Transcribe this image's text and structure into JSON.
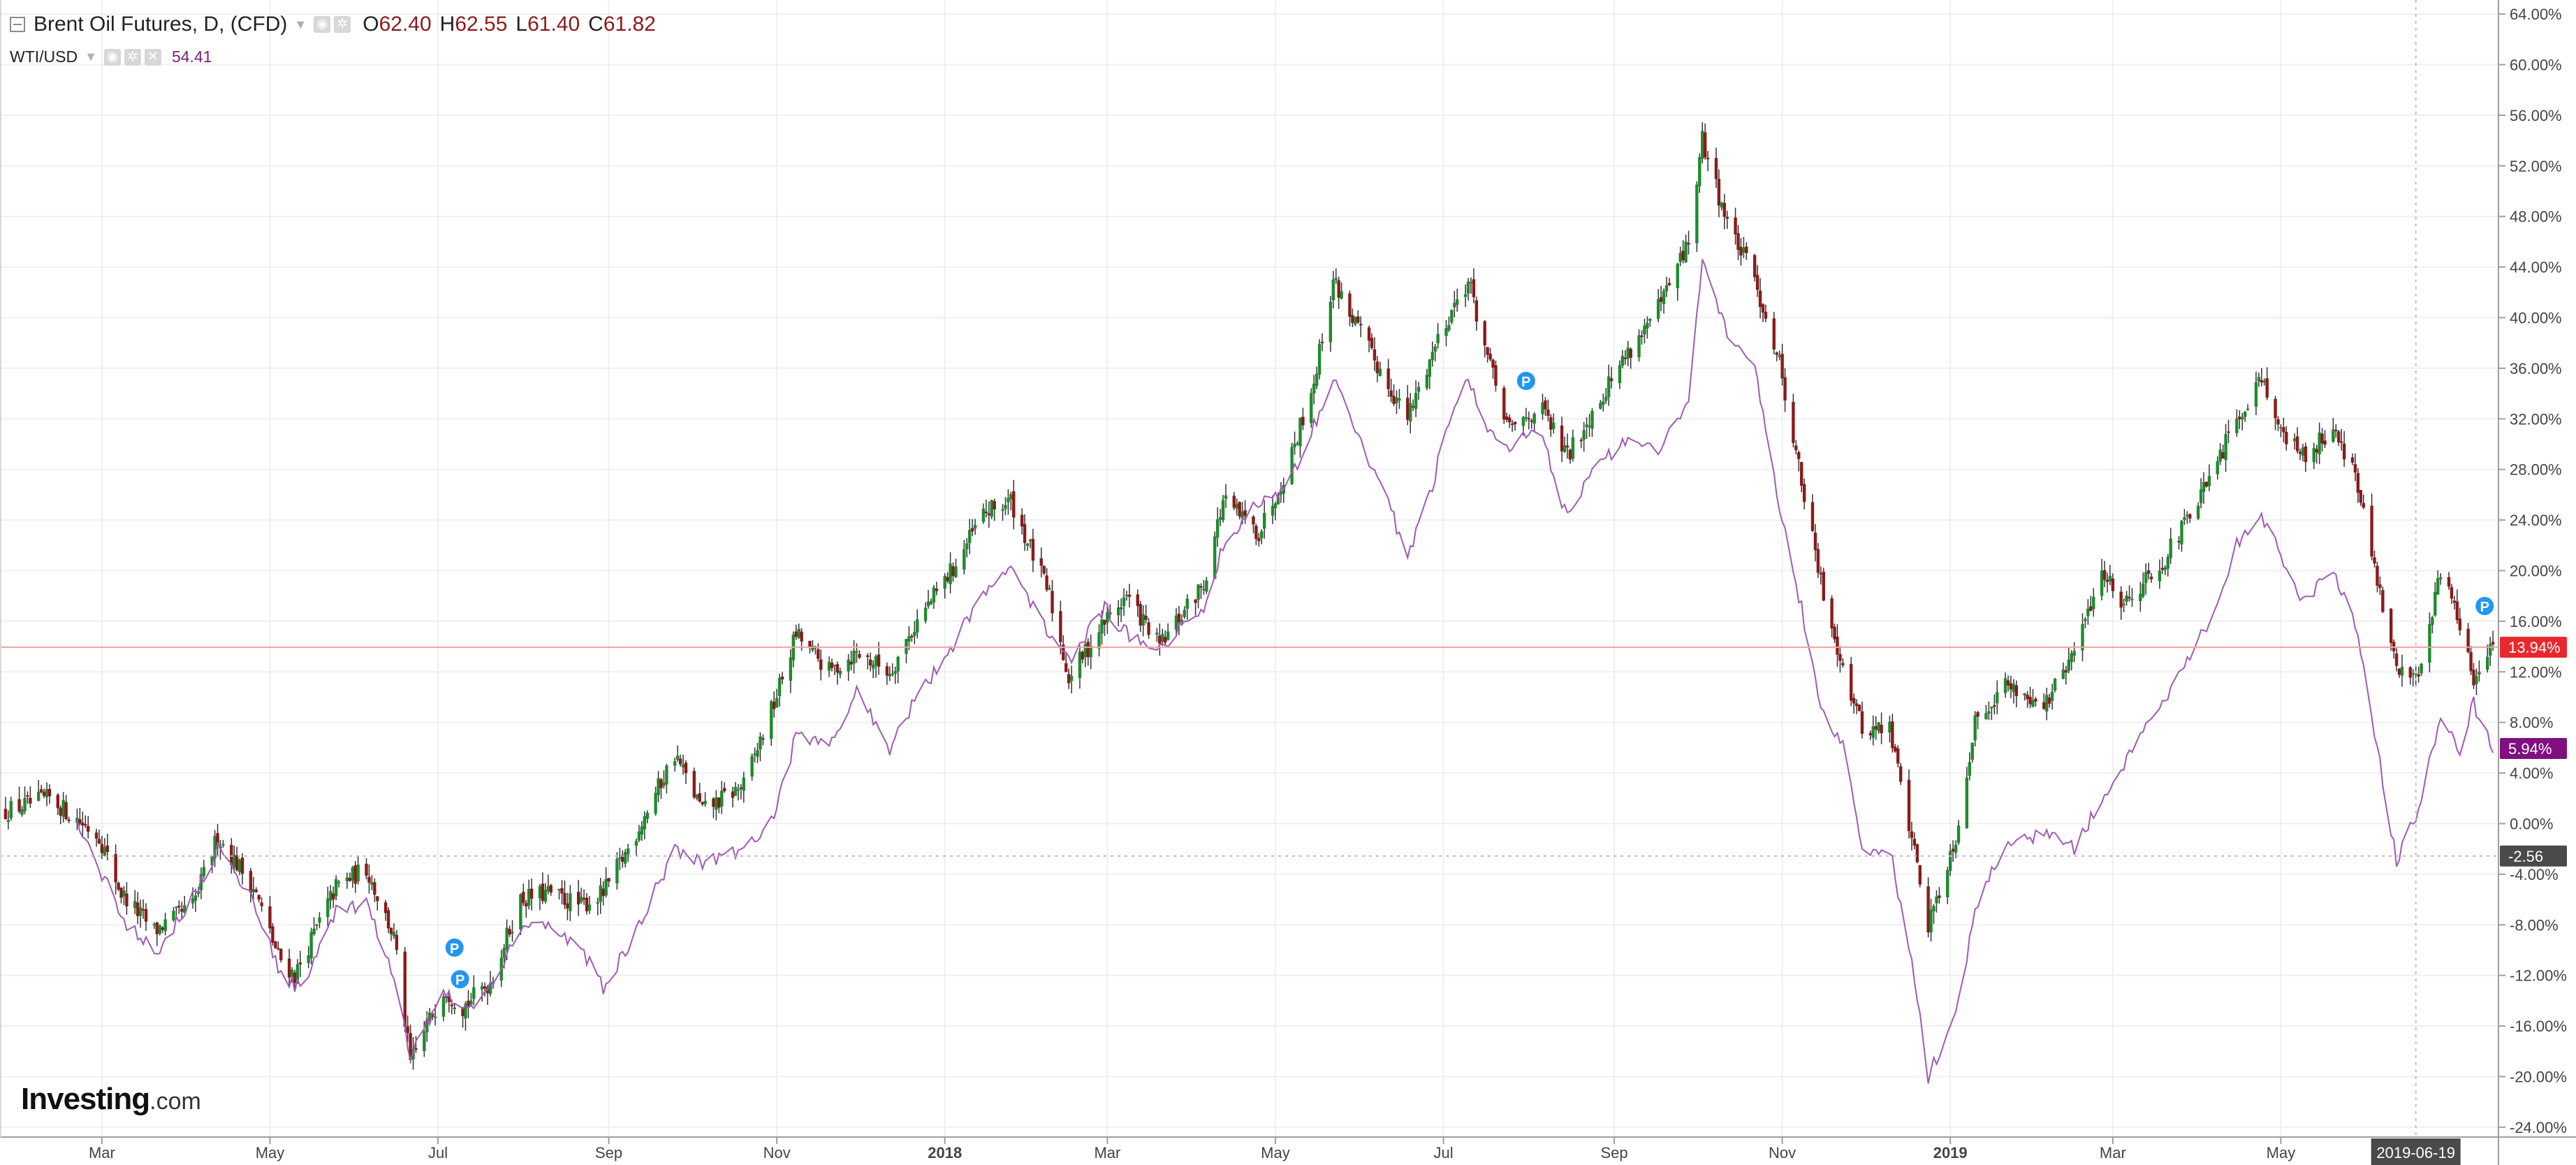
{
  "legend": {
    "main_title": "Brent Oil Futures, D, (CFD)",
    "open_key": "O",
    "open": "62.40",
    "high_key": "H",
    "high": "62.55",
    "low_key": "L",
    "low": "61.40",
    "close_key": "C",
    "close": "61.82",
    "compare_name": "WTI/USD",
    "compare_value": "54.41"
  },
  "branding": {
    "logo_text": "Investing",
    "logo_suffix": ".com"
  },
  "colors": {
    "up": "#1f8a2e",
    "down": "#8b1a1a",
    "compare_line": "#a05ab4",
    "last_badge": "#e8282e",
    "compare_badge": "#800f80",
    "marker": "#2196f3"
  },
  "chart_data": {
    "type": "line",
    "ylim": [
      -25,
      65
    ],
    "y_ticks": [
      "64.00%",
      "60.00%",
      "56.00%",
      "52.00%",
      "48.00%",
      "44.00%",
      "40.00%",
      "36.00%",
      "32.00%",
      "28.00%",
      "24.00%",
      "20.00%",
      "16.00%",
      "12.00%",
      "8.00%",
      "4.00%",
      "0.00%",
      "-4.00%",
      "-8.00%",
      "-12.00%",
      "-16.00%",
      "-20.00%",
      "-24.00%"
    ],
    "y_tick_values": [
      64,
      60,
      56,
      52,
      48,
      44,
      40,
      36,
      32,
      28,
      24,
      20,
      16,
      12,
      8,
      4,
      0,
      -4,
      -8,
      -12,
      -16,
      -20,
      -24
    ],
    "x_labels": [
      "Mar",
      "May",
      "Jul",
      "Sep",
      "Nov",
      "2018",
      "Mar",
      "May",
      "Jul",
      "Sep",
      "Nov",
      "2019",
      "Mar",
      "May"
    ],
    "x_label_dates": [
      "2017-03-01",
      "2017-05-01",
      "2017-07-01",
      "2017-09-01",
      "2017-11-01",
      "2018-01-01",
      "2018-03-01",
      "2018-05-01",
      "2018-07-01",
      "2018-09-01",
      "2018-11-01",
      "2019-01-01",
      "2019-03-01",
      "2019-05-01"
    ],
    "x_range": [
      "2017-01-23",
      "2019-07-19"
    ],
    "crosshair_date_label": "2019-06-19",
    "crosshair_value_label": "-2.56",
    "crosshair_value": -2.56,
    "price_line_value": 13.94,
    "price_line_label": "13.94%",
    "compare_last_value": 5.94,
    "compare_last_label": "5.94%",
    "grid": true,
    "series": [
      {
        "type": "candlestick",
        "points": [
          [
            "2017-01-25",
            1.0
          ],
          [
            "2017-02-10",
            2.0
          ],
          [
            "2017-02-28",
            -1.0
          ],
          [
            "2017-03-08",
            -5.5
          ],
          [
            "2017-03-20",
            -8.5
          ],
          [
            "2017-04-03",
            -6.5
          ],
          [
            "2017-04-12",
            -1.0
          ],
          [
            "2017-04-25",
            -5.0
          ],
          [
            "2017-05-04",
            -10.5
          ],
          [
            "2017-05-10",
            -12.0
          ],
          [
            "2017-05-25",
            -5.0
          ],
          [
            "2017-06-05",
            -3.5
          ],
          [
            "2017-06-15",
            -9.0
          ],
          [
            "2017-06-21",
            -19.0
          ],
          [
            "2017-07-03",
            -13.0
          ],
          [
            "2017-07-10",
            -14.5
          ],
          [
            "2017-07-20",
            -12.5
          ],
          [
            "2017-07-31",
            -6.0
          ],
          [
            "2017-08-10",
            -5.5
          ],
          [
            "2017-08-22",
            -6.5
          ],
          [
            "2017-08-30",
            -5.5
          ],
          [
            "2017-09-08",
            -2.0
          ],
          [
            "2017-09-25",
            5.5
          ],
          [
            "2017-10-05",
            1.0
          ],
          [
            "2017-10-20",
            3.0
          ],
          [
            "2017-10-31",
            9.5
          ],
          [
            "2017-11-08",
            15.0
          ],
          [
            "2017-11-20",
            12.0
          ],
          [
            "2017-11-30",
            13.5
          ],
          [
            "2017-12-12",
            12.0
          ],
          [
            "2017-12-22",
            16.0
          ],
          [
            "2018-01-05",
            20.5
          ],
          [
            "2018-01-15",
            24.5
          ],
          [
            "2018-01-25",
            25.5
          ],
          [
            "2018-02-08",
            18.0
          ],
          [
            "2018-02-15",
            11.5
          ],
          [
            "2018-02-28",
            16.0
          ],
          [
            "2018-03-08",
            18.0
          ],
          [
            "2018-03-20",
            14.0
          ],
          [
            "2018-04-05",
            19.0
          ],
          [
            "2018-04-12",
            25.5
          ],
          [
            "2018-04-25",
            23.0
          ],
          [
            "2018-05-05",
            28.0
          ],
          [
            "2018-05-15",
            35.0
          ],
          [
            "2018-05-22",
            43.0
          ],
          [
            "2018-06-05",
            37.0
          ],
          [
            "2018-06-18",
            32.0
          ],
          [
            "2018-06-30",
            39.0
          ],
          [
            "2018-07-10",
            43.0
          ],
          [
            "2018-07-18",
            36.0
          ],
          [
            "2018-07-25",
            31.0
          ],
          [
            "2018-08-05",
            33.0
          ],
          [
            "2018-08-15",
            29.0
          ],
          [
            "2018-08-25",
            33.0
          ],
          [
            "2018-09-05",
            37.0
          ],
          [
            "2018-09-18",
            41.0
          ],
          [
            "2018-09-28",
            46.0
          ],
          [
            "2018-10-03",
            54.0
          ],
          [
            "2018-10-12",
            47.5
          ],
          [
            "2018-10-22",
            43.0
          ],
          [
            "2018-10-31",
            36.5
          ],
          [
            "2018-11-08",
            27.0
          ],
          [
            "2018-11-15",
            19.0
          ],
          [
            "2018-11-23",
            12.5
          ],
          [
            "2018-11-30",
            7.5
          ],
          [
            "2018-12-10",
            7.5
          ],
          [
            "2018-12-18",
            -1.0
          ],
          [
            "2018-12-24",
            -8.0
          ],
          [
            "2019-01-03",
            -1.0
          ],
          [
            "2019-01-10",
            8.0
          ],
          [
            "2019-01-20",
            11.0
          ],
          [
            "2019-02-05",
            9.5
          ],
          [
            "2019-02-15",
            13.5
          ],
          [
            "2019-02-25",
            20.0
          ],
          [
            "2019-03-05",
            17.5
          ],
          [
            "2019-03-20",
            21.0
          ],
          [
            "2019-04-05",
            27.0
          ],
          [
            "2019-04-15",
            32.0
          ],
          [
            "2019-04-24",
            35.5
          ],
          [
            "2019-05-02",
            30.5
          ],
          [
            "2019-05-10",
            29.0
          ],
          [
            "2019-05-20",
            31.5
          ],
          [
            "2019-05-28",
            27.5
          ],
          [
            "2019-06-05",
            19.0
          ],
          [
            "2019-06-12",
            12.0
          ],
          [
            "2019-06-20",
            12.0
          ],
          [
            "2019-06-28",
            20.0
          ],
          [
            "2019-07-05",
            16.0
          ],
          [
            "2019-07-10",
            11.0
          ],
          [
            "2019-07-17",
            13.94
          ]
        ]
      },
      {
        "type": "line",
        "points": [
          [
            "2017-02-20",
            0.0
          ],
          [
            "2017-03-10",
            -8.0
          ],
          [
            "2017-03-22",
            -10.0
          ],
          [
            "2017-04-05",
            -5.0
          ],
          [
            "2017-04-12",
            -2.0
          ],
          [
            "2017-04-25",
            -6.0
          ],
          [
            "2017-05-05",
            -12.0
          ],
          [
            "2017-05-12",
            -13.0
          ],
          [
            "2017-05-25",
            -7.0
          ],
          [
            "2017-06-05",
            -6.5
          ],
          [
            "2017-06-15",
            -12.0
          ],
          [
            "2017-06-21",
            -18.5
          ],
          [
            "2017-07-03",
            -13.0
          ],
          [
            "2017-07-10",
            -15.0
          ],
          [
            "2017-07-20",
            -13.0
          ],
          [
            "2017-07-31",
            -8.0
          ],
          [
            "2017-08-10",
            -8.0
          ],
          [
            "2017-08-22",
            -10.0
          ],
          [
            "2017-08-30",
            -13.0
          ],
          [
            "2017-09-10",
            -9.0
          ],
          [
            "2017-09-25",
            -2.0
          ],
          [
            "2017-10-05",
            -3.0
          ],
          [
            "2017-10-20",
            -2.0
          ],
          [
            "2017-10-31",
            0.5
          ],
          [
            "2017-11-08",
            7.0
          ],
          [
            "2017-11-20",
            6.0
          ],
          [
            "2017-11-30",
            10.5
          ],
          [
            "2017-12-12",
            6.0
          ],
          [
            "2017-12-22",
            10.0
          ],
          [
            "2018-01-05",
            14.5
          ],
          [
            "2018-01-15",
            18.5
          ],
          [
            "2018-01-25",
            20.0
          ],
          [
            "2018-02-08",
            15.0
          ],
          [
            "2018-02-15",
            13.0
          ],
          [
            "2018-02-28",
            17.0
          ],
          [
            "2018-03-08",
            15.0
          ],
          [
            "2018-03-20",
            14.0
          ],
          [
            "2018-04-05",
            17.0
          ],
          [
            "2018-04-12",
            22.0
          ],
          [
            "2018-04-25",
            25.5
          ],
          [
            "2018-05-05",
            26.5
          ],
          [
            "2018-05-15",
            31.5
          ],
          [
            "2018-05-22",
            35.5
          ],
          [
            "2018-06-01",
            30.0
          ],
          [
            "2018-06-10",
            26.0
          ],
          [
            "2018-06-18",
            21.0
          ],
          [
            "2018-06-26",
            26.0
          ],
          [
            "2018-07-05",
            33.5
          ],
          [
            "2018-07-10",
            35.0
          ],
          [
            "2018-07-18",
            31.0
          ],
          [
            "2018-07-25",
            30.0
          ],
          [
            "2018-08-05",
            31.0
          ],
          [
            "2018-08-15",
            24.0
          ],
          [
            "2018-08-25",
            28.5
          ],
          [
            "2018-09-05",
            30.0
          ],
          [
            "2018-09-18",
            29.5
          ],
          [
            "2018-09-28",
            33.5
          ],
          [
            "2018-10-03",
            44.5
          ],
          [
            "2018-10-12",
            39.0
          ],
          [
            "2018-10-22",
            36.0
          ],
          [
            "2018-10-31",
            25.0
          ],
          [
            "2018-11-08",
            17.0
          ],
          [
            "2018-11-15",
            9.0
          ],
          [
            "2018-11-23",
            6.5
          ],
          [
            "2018-11-30",
            -2.0
          ],
          [
            "2018-12-10",
            -2.0
          ],
          [
            "2018-12-18",
            -11.0
          ],
          [
            "2018-12-24",
            -20.0
          ],
          [
            "2019-01-03",
            -15.0
          ],
          [
            "2019-01-10",
            -7.0
          ],
          [
            "2019-01-20",
            -2.0
          ],
          [
            "2019-02-05",
            -0.5
          ],
          [
            "2019-02-15",
            -2.0
          ],
          [
            "2019-02-25",
            2.0
          ],
          [
            "2019-03-05",
            4.5
          ],
          [
            "2019-03-20",
            10.0
          ],
          [
            "2019-04-05",
            16.0
          ],
          [
            "2019-04-15",
            22.0
          ],
          [
            "2019-04-24",
            24.5
          ],
          [
            "2019-05-02",
            20.5
          ],
          [
            "2019-05-10",
            17.5
          ],
          [
            "2019-05-20",
            20.0
          ],
          [
            "2019-05-28",
            16.0
          ],
          [
            "2019-06-05",
            6.0
          ],
          [
            "2019-06-12",
            -3.0
          ],
          [
            "2019-06-20",
            1.0
          ],
          [
            "2019-06-28",
            8.5
          ],
          [
            "2019-07-05",
            6.0
          ],
          [
            "2019-07-10",
            9.5
          ],
          [
            "2019-07-17",
            5.94
          ]
        ]
      }
    ],
    "markers": [
      {
        "label": "P",
        "date": "2017-07-07",
        "value": -9.8
      },
      {
        "label": "P",
        "date": "2017-07-09",
        "value": -12.3
      },
      {
        "label": "P",
        "date": "2018-07-31",
        "value": 35.0
      },
      {
        "label": "P",
        "date": "2019-07-14",
        "value": 17.2
      }
    ]
  }
}
